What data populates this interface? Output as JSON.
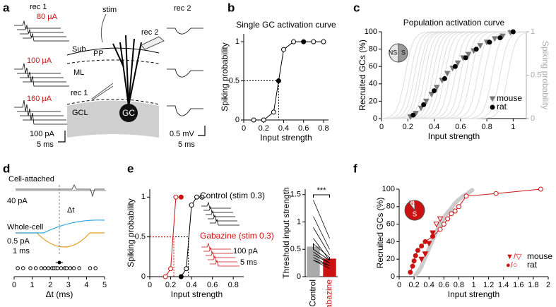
{
  "panel_letters": [
    "a",
    "b",
    "c",
    "d",
    "e",
    "f"
  ],
  "diagram_a": {
    "rec1": "rec 1",
    "stim_labels": [
      "80 µA",
      "100 µA",
      "160 µA"
    ],
    "scale_left": [
      "100 pA",
      "5 ms"
    ],
    "stim": "stim",
    "rec2": "rec 2",
    "layers": [
      "Sub",
      "PP",
      "ML",
      "GCL"
    ],
    "rec1_electrode": "rec 1",
    "cell": "GC",
    "rec2_title": "rec 2",
    "scale_right": [
      "0.5 mV",
      "5 ms"
    ]
  },
  "chart_data": [
    {
      "type": "line",
      "title": "Single GC activation curve",
      "xlabel": "Input strength",
      "ylabel": "Spiking probability",
      "series": [
        {
          "name": "GC",
          "color": "#000000",
          "x": [
            0.1,
            0.2,
            0.3,
            0.35,
            0.4,
            0.5,
            0.6,
            0.7,
            0.8
          ],
          "values": [
            0,
            0,
            0.1,
            0.5,
            0.9,
            1,
            1,
            1,
            1
          ],
          "filled": [
            false,
            false,
            false,
            true,
            false,
            false,
            true,
            false,
            false
          ]
        }
      ],
      "guide": [
        0.35,
        0.5
      ],
      "xlim": [
        0,
        0.85
      ],
      "ylim": [
        0,
        1.1
      ],
      "xticks": [
        0,
        0.2,
        0.4,
        0.6,
        0.8
      ],
      "yticks": [
        0,
        0.5,
        1
      ]
    },
    {
      "type": "scatter",
      "title": "Population activation curve",
      "xlabel": "Input strength",
      "ylabel": "Recruited GCs (%)",
      "y2label": "Spiking probability",
      "series": [
        {
          "name": "mouse",
          "marker": "triangle",
          "color": "#777777",
          "x": [
            0.22,
            0.26,
            0.3,
            0.34,
            0.38,
            0.42,
            0.46,
            0.5,
            0.54,
            0.58,
            0.62,
            0.66,
            0.7,
            0.75,
            0.8,
            0.86,
            0.92,
            0.98
          ],
          "values": [
            2,
            6,
            12,
            20,
            28,
            36,
            44,
            52,
            58,
            64,
            70,
            74,
            78,
            84,
            88,
            92,
            95,
            99
          ]
        },
        {
          "name": "rat",
          "marker": "circle",
          "color": "#000000",
          "x": [
            0.24,
            0.32,
            0.4,
            0.48,
            0.56,
            0.64,
            0.72,
            0.82,
            0.9,
            1.0
          ],
          "values": [
            4,
            16,
            32,
            46,
            60,
            70,
            80,
            88,
            93,
            100
          ]
        }
      ],
      "single_cell_thresholds": [
        0.18,
        0.22,
        0.25,
        0.28,
        0.3,
        0.33,
        0.36,
        0.39,
        0.42,
        0.45,
        0.48,
        0.52,
        0.56,
        0.6,
        0.64,
        0.68,
        0.73,
        0.78,
        0.84,
        0.9,
        0.96
      ],
      "pie": {
        "labels": [
          "NS",
          "S"
        ],
        "values": [
          50,
          50
        ],
        "colors": [
          "#e6e6e6",
          "#999999"
        ]
      },
      "xlim": [
        0,
        1.1
      ],
      "ylim": [
        0,
        100
      ],
      "xticks": [
        0,
        0.2,
        0.4,
        0.6,
        0.8,
        1
      ],
      "yticks": [
        0,
        20,
        40,
        60,
        80,
        100
      ],
      "y2lim": [
        0,
        1
      ],
      "y2ticks": [
        0,
        0.5,
        1
      ]
    },
    {
      "type": "strip",
      "xlabel": "Δt (ms)",
      "x": [
        0.2,
        0.5,
        0.9,
        1.2,
        1.5,
        1.7,
        1.9,
        2.1,
        2.2,
        2.3,
        2.4,
        2.6,
        2.8,
        2.9,
        3.1,
        3.3,
        3.6,
        4.2,
        4.5
      ],
      "mean": 2.5,
      "sem": 0.2,
      "annotations": {
        "cell_attached": "Cell-attached",
        "whole_cell": "Whole-cell",
        "scale_current": "40 pA",
        "scale_current2": "0.5 pA",
        "scale_time": "1 ms",
        "delta": "Δt"
      },
      "xlim": [
        0,
        5
      ],
      "xticks": [
        0,
        1,
        2,
        3,
        4,
        5
      ]
    },
    {
      "type": "line",
      "xlabel": "Input strength",
      "ylabel": "Spiking probability",
      "series": [
        {
          "name": "Control (stim 0.3)",
          "color": "#000000",
          "x": [
            0.3,
            0.35,
            0.4,
            0.45,
            0.5
          ],
          "values": [
            0,
            0.1,
            0.9,
            1,
            1
          ],
          "filled": [
            true,
            false,
            false,
            false,
            false
          ]
        },
        {
          "name": "Gabazine (stim 0.3)",
          "color": "#cc1111",
          "x": [
            0.15,
            0.2,
            0.25,
            0.3
          ],
          "values": [
            0,
            0.1,
            1,
            1
          ],
          "filled": [
            false,
            false,
            false,
            true
          ]
        }
      ],
      "guide": [
        0.37,
        0.5
      ],
      "guide2": [
        0.23,
        0.5
      ],
      "scale": [
        "100 pA",
        "5 ms"
      ],
      "xlim": [
        0,
        0.9
      ],
      "ylim": [
        0,
        1.1
      ],
      "xticks": [
        0,
        0.2,
        0.4,
        0.6,
        0.8
      ],
      "yticks": [
        0,
        0.5,
        1
      ]
    },
    {
      "type": "bar",
      "ylabel": "Threshold input strength",
      "categories": [
        "Control",
        "Gabazine"
      ],
      "values": [
        0.55,
        0.33
      ],
      "errors": [
        0.06,
        0.03
      ],
      "colors": [
        "#aaaaaa",
        "#cc1111"
      ],
      "pairs": [
        [
          1.4,
          0.7
        ],
        [
          1.1,
          0.5
        ],
        [
          0.9,
          0.4
        ],
        [
          0.7,
          0.3
        ],
        [
          0.6,
          0.35
        ],
        [
          0.5,
          0.3
        ],
        [
          0.45,
          0.25
        ],
        [
          0.4,
          0.25
        ],
        [
          0.35,
          0.2
        ],
        [
          0.3,
          0.2
        ],
        [
          0.3,
          0.15
        ]
      ],
      "significance": "***",
      "ylim": [
        0,
        1.6
      ],
      "yticks": [
        0,
        0.5,
        1,
        1.5
      ]
    },
    {
      "type": "scatter",
      "xlabel": "Input strength",
      "ylabel": "Recruited GCs (%)",
      "series": [
        {
          "name": "mouse",
          "symbol": "▼/▽",
          "marker": "triangle",
          "color": "#cc1111",
          "x": [
            0.3,
            0.35,
            0.4,
            0.45,
            0.5,
            0.55
          ],
          "values": [
            20,
            26,
            38,
            50,
            60,
            66
          ],
          "filled": [
            true,
            true,
            true,
            true,
            false,
            false
          ]
        },
        {
          "name": "rat",
          "symbol": "●/○",
          "marker": "circle",
          "color": "#cc1111",
          "x": [
            0.15,
            0.18,
            0.2,
            0.22,
            0.25,
            0.3,
            0.35,
            0.45,
            0.55,
            0.6,
            0.65,
            0.7,
            0.75,
            0.8,
            0.9,
            1.3,
            1.9
          ],
          "values": [
            5,
            12,
            18,
            24,
            30,
            35,
            40,
            46,
            54,
            60,
            66,
            72,
            75,
            80,
            92,
            95,
            100
          ],
          "filled": [
            true,
            true,
            true,
            true,
            true,
            true,
            true,
            true,
            false,
            false,
            false,
            false,
            false,
            false,
            false,
            false,
            false
          ],
          "line": true
        }
      ],
      "pie": {
        "labels": [
          "NS",
          "S"
        ],
        "values": [
          10,
          90
        ],
        "colors": [
          "#ffffff",
          "#cc1111"
        ]
      },
      "xlim": [
        0,
        2
      ],
      "ylim": [
        0,
        100
      ],
      "xticks": [
        0,
        0.2,
        0.4,
        0.6,
        0.8,
        1,
        1.2,
        1.4,
        1.6,
        1.8,
        2
      ],
      "yticks": [
        0,
        20,
        40,
        60,
        80,
        100
      ]
    }
  ]
}
